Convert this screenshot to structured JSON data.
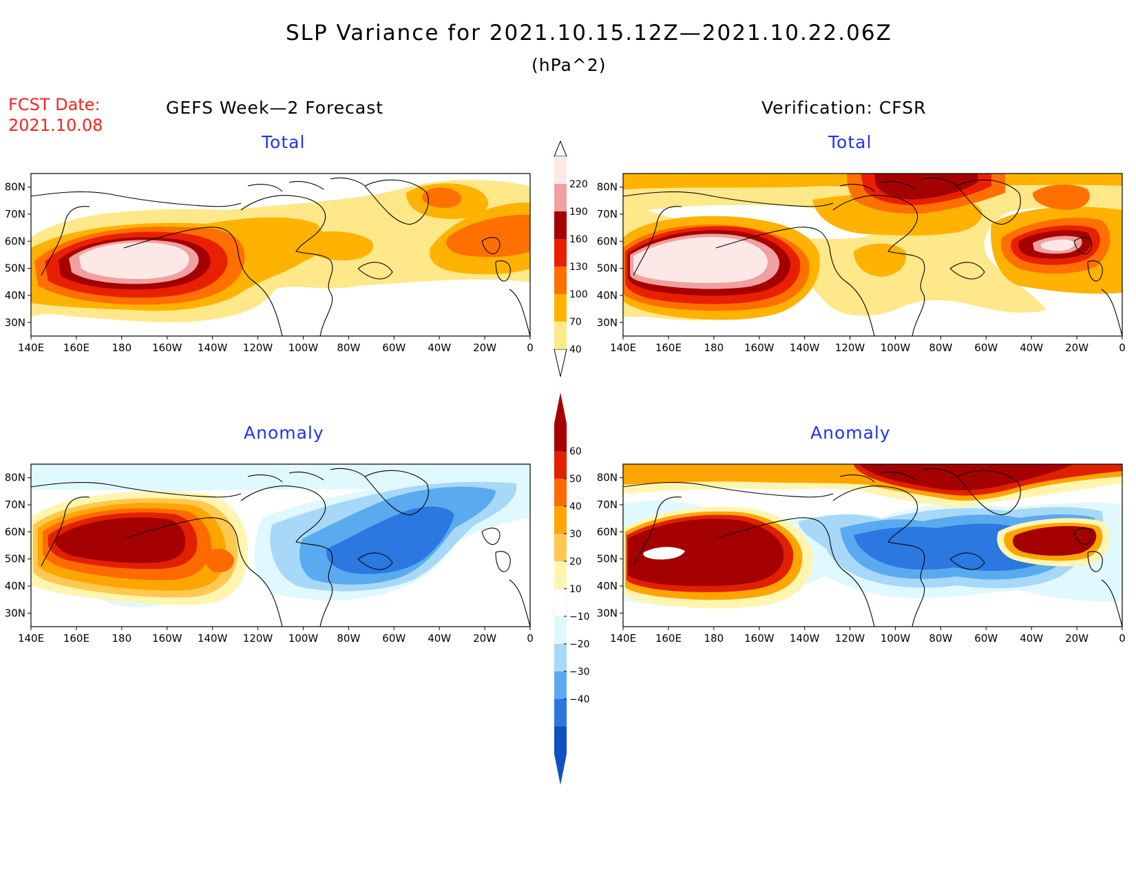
{
  "header": {
    "title": "SLP Variance for 2021.10.15.12Z—2021.10.22.06Z",
    "units": "(hPa^2)",
    "fcst_label": "FCST Date:",
    "fcst_date": "2021.10.08"
  },
  "columns": {
    "left": "GEFS Week—2 Forecast",
    "right": "Verification: CFSR"
  },
  "map_axes": {
    "lon_labels": [
      "140E",
      "160E",
      "180",
      "160W",
      "140W",
      "120W",
      "100W",
      "80W",
      "60W",
      "40W",
      "20W",
      "0"
    ],
    "lat_labels": [
      "80N",
      "70N",
      "60N",
      "50N",
      "40N",
      "30N"
    ],
    "lon_range": [
      140,
      360
    ],
    "lat_range": [
      25,
      85
    ]
  },
  "colorbars": {
    "total": {
      "levels": [
        "40",
        "70",
        "100",
        "130",
        "160",
        "190",
        "220"
      ],
      "colors": [
        "#ffe88a",
        "#ffb300",
        "#ff7000",
        "#e82000",
        "#a50000",
        "#f0a0a0",
        "#fde8e8"
      ]
    },
    "anomaly": {
      "levels": [
        "60",
        "50",
        "40",
        "30",
        "20",
        "10",
        "−10",
        "−20",
        "−30",
        "−40"
      ],
      "colors_pos": [
        "#a50000",
        "#e02000",
        "#ff6a00",
        "#ffa500",
        "#ffc850",
        "#fff5b0"
      ],
      "colors_neg": [
        "#e0f8ff",
        "#a8d8f8",
        "#5aaaf0",
        "#2a78e0",
        "#1050c0"
      ]
    }
  },
  "panels": [
    {
      "id": "fcst-total",
      "title": "Total",
      "type": "total"
    },
    {
      "id": "verif-total",
      "title": "Total",
      "type": "total"
    },
    {
      "id": "fcst-anom",
      "title": "Anomaly",
      "type": "anomaly"
    },
    {
      "id": "verif-anom",
      "title": "Anomaly",
      "type": "anomaly"
    }
  ],
  "colors": {
    "total_outer": "#ffe88a",
    "total_mid": "#ffb300",
    "total_orange": "#ff7000",
    "total_red": "#e82000",
    "total_dark": "#a50000",
    "total_pink": "#f0a0a0",
    "total_white": "#fde8e8",
    "anom_pos_light": "#fff5b0",
    "anom_pos_yellow": "#ffc850",
    "anom_pos_orange": "#ffa500",
    "anom_pos_red": "#ff6a00",
    "anom_pos_crimson": "#e02000",
    "anom_pos_dark": "#a50000",
    "anom_neg_pale": "#e0f8ff",
    "anom_neg_light": "#a8d8f8",
    "anom_neg_mid": "#5aaaf0",
    "anom_neg_strong": "#2a78e0"
  }
}
